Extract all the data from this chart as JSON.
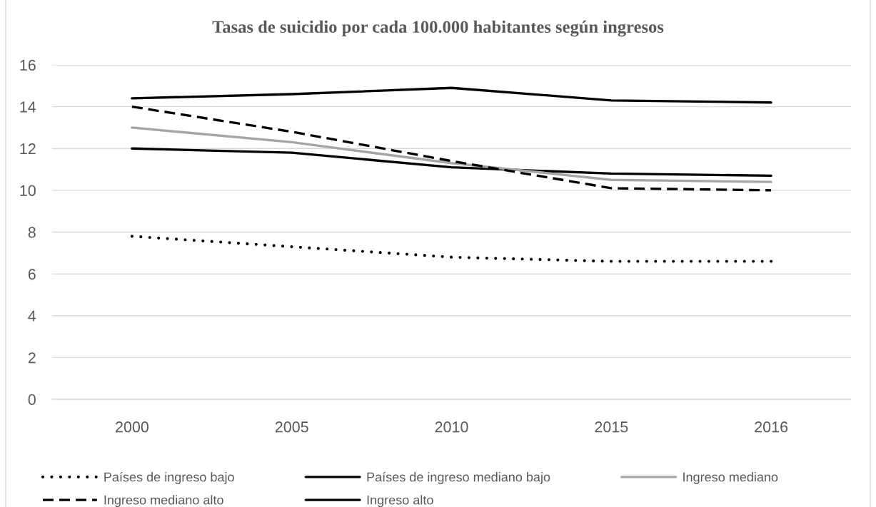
{
  "chart_data": {
    "type": "line",
    "title": "Tasas de suicidio por cada 100.000 habitantes según ingresos",
    "categories": [
      "2000",
      "2005",
      "2010",
      "2015",
      "2016"
    ],
    "series": [
      {
        "name": "Países de ingreso bajo",
        "color": "#000000",
        "line_style": "dotted",
        "values": [
          7.8,
          7.3,
          6.8,
          6.6,
          6.6
        ]
      },
      {
        "name": "Países de ingreso mediano bajo",
        "color": "#000000",
        "line_style": "solid",
        "values": [
          12.0,
          11.8,
          11.1,
          10.8,
          10.7
        ]
      },
      {
        "name": "Ingreso mediano",
        "color": "#a5a5a5",
        "line_style": "solid",
        "values": [
          13.0,
          12.3,
          11.3,
          10.5,
          10.4
        ]
      },
      {
        "name": "Ingreso mediano alto",
        "color": "#000000",
        "line_style": "dashed",
        "values": [
          14.0,
          12.8,
          11.4,
          10.1,
          10.0
        ]
      },
      {
        "name": "Ingreso alto",
        "color": "#000000",
        "line_style": "solid",
        "values": [
          14.4,
          14.6,
          14.9,
          14.3,
          14.2
        ]
      }
    ],
    "ylim": [
      0,
      16
    ],
    "yticks": [
      0,
      2,
      4,
      6,
      8,
      10,
      12,
      14,
      16
    ],
    "grid": "y",
    "legend": "bottom"
  }
}
